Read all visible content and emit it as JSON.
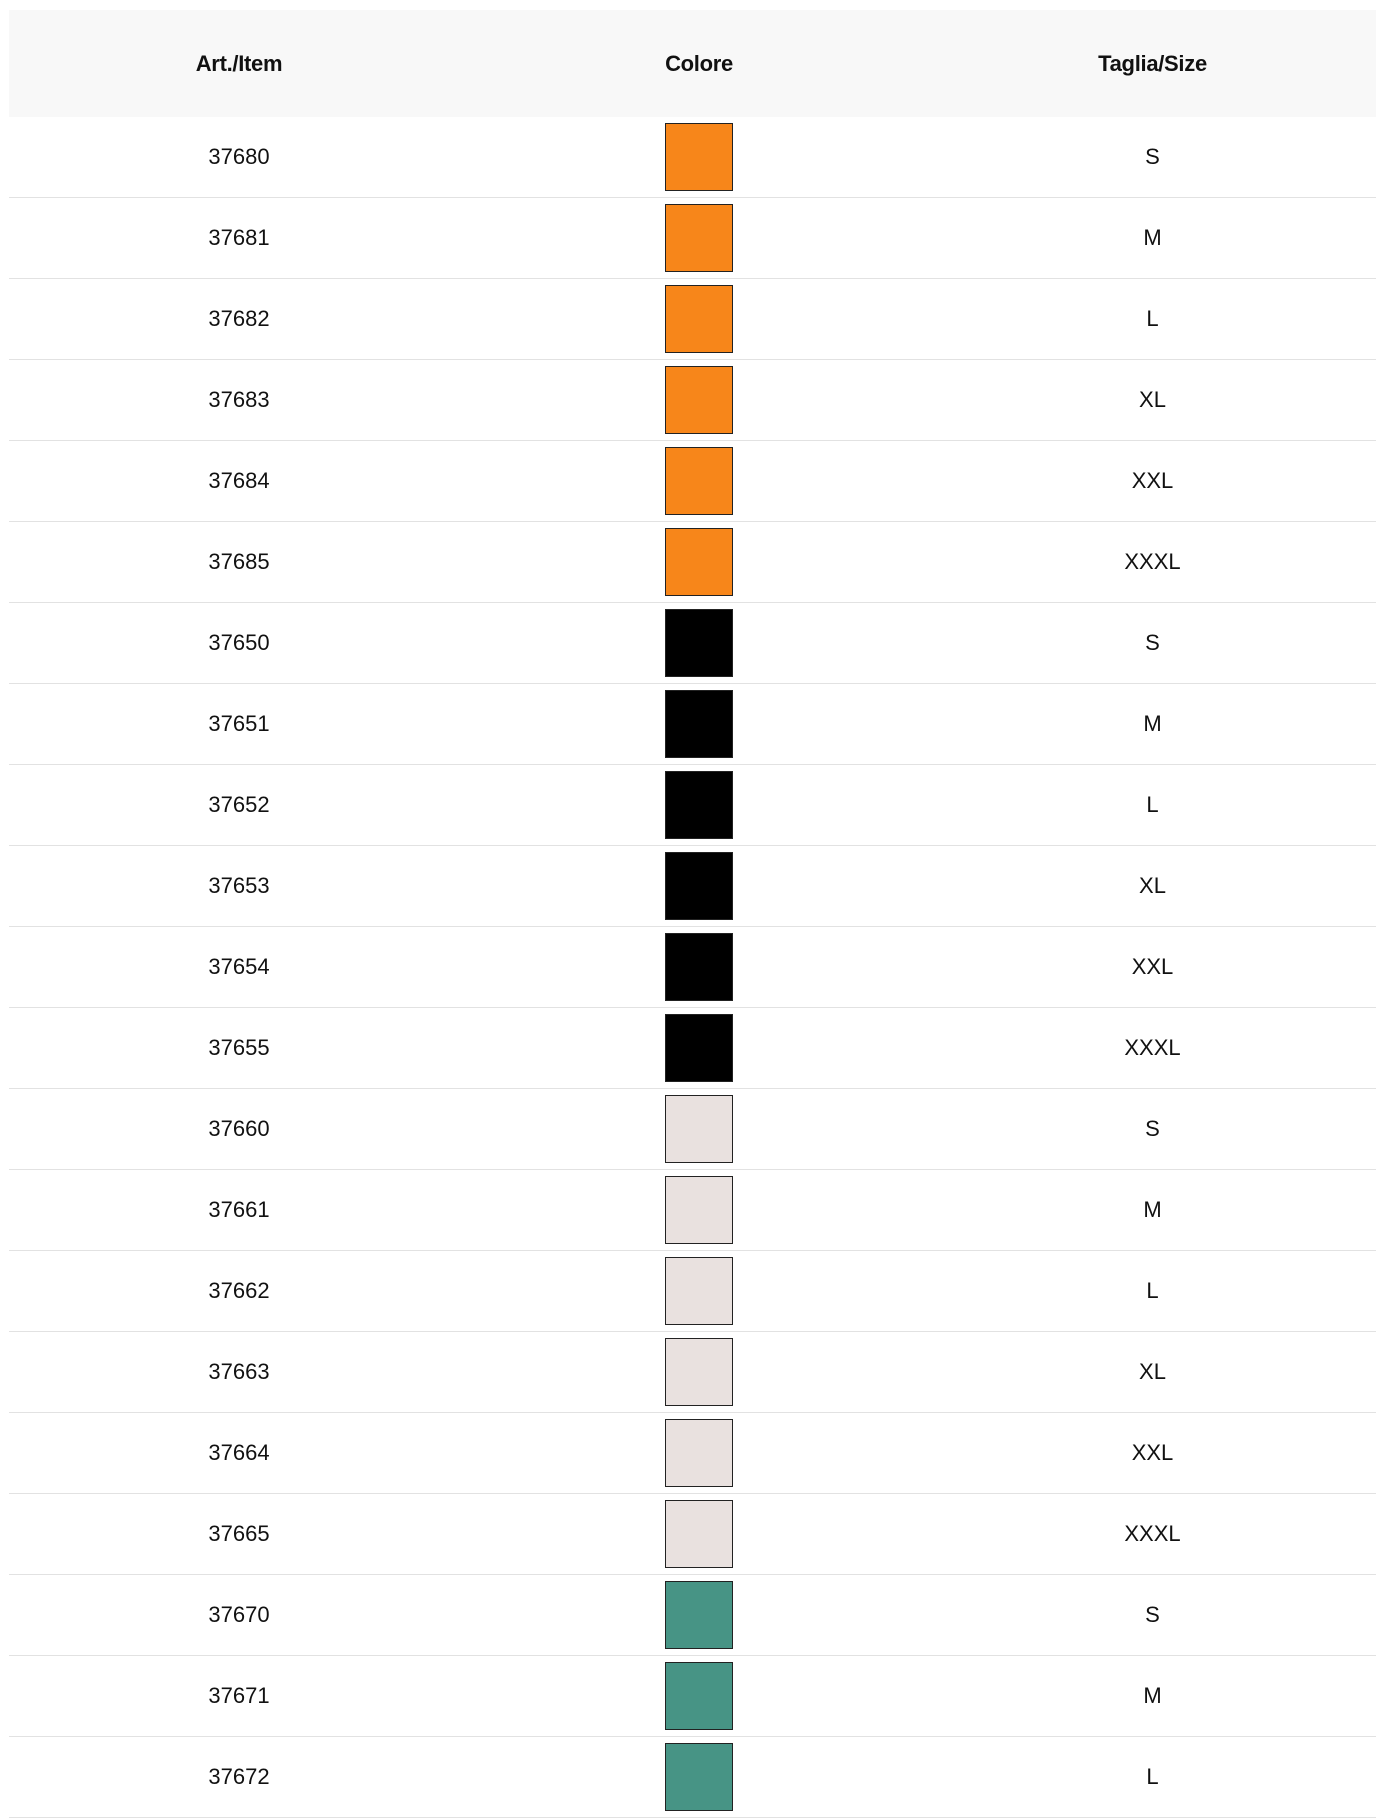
{
  "table": {
    "headers": {
      "item": "Art./Item",
      "color": "Colore",
      "size": "Taglia/Size"
    },
    "rows": [
      {
        "item": "37680",
        "color": "#F7861A",
        "size": "S"
      },
      {
        "item": "37681",
        "color": "#F7861A",
        "size": "M"
      },
      {
        "item": "37682",
        "color": "#F7861A",
        "size": "L"
      },
      {
        "item": "37683",
        "color": "#F7861A",
        "size": "XL"
      },
      {
        "item": "37684",
        "color": "#F7861A",
        "size": "XXL"
      },
      {
        "item": "37685",
        "color": "#F7861A",
        "size": "XXXL"
      },
      {
        "item": "37650",
        "color": "#000000",
        "size": "S"
      },
      {
        "item": "37651",
        "color": "#000000",
        "size": "M"
      },
      {
        "item": "37652",
        "color": "#000000",
        "size": "L"
      },
      {
        "item": "37653",
        "color": "#000000",
        "size": "XL"
      },
      {
        "item": "37654",
        "color": "#000000",
        "size": "XXL"
      },
      {
        "item": "37655",
        "color": "#000000",
        "size": "XXXL"
      },
      {
        "item": "37660",
        "color": "#E9E1DF",
        "size": "S"
      },
      {
        "item": "37661",
        "color": "#E9E1DF",
        "size": "M"
      },
      {
        "item": "37662",
        "color": "#E9E1DF",
        "size": "L"
      },
      {
        "item": "37663",
        "color": "#E9E1DF",
        "size": "XL"
      },
      {
        "item": "37664",
        "color": "#E9E1DF",
        "size": "XXL"
      },
      {
        "item": "37665",
        "color": "#E9E1DF",
        "size": "XXXL"
      },
      {
        "item": "37670",
        "color": "#479485",
        "size": "S"
      },
      {
        "item": "37671",
        "color": "#479485",
        "size": "M"
      },
      {
        "item": "37672",
        "color": "#479485",
        "size": "L"
      }
    ]
  }
}
